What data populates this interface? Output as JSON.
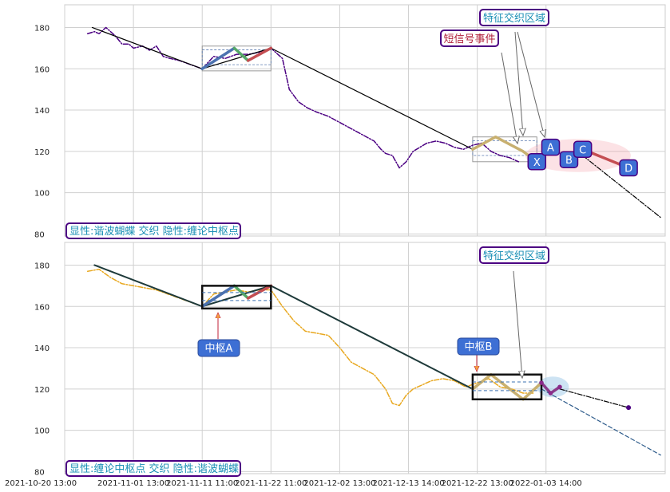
{
  "chart_data": [
    {
      "type": "line",
      "panel": "top",
      "ylim": [
        79,
        191
      ],
      "yticks": [
        80,
        100,
        120,
        140,
        160,
        180
      ],
      "grid": true,
      "series": [
        {
          "role": "price",
          "color": "#4b0082",
          "style": "dash-dot",
          "values": [
            [
              0,
              177
            ],
            [
              3,
              178
            ],
            [
              5,
              177
            ],
            [
              8,
              180
            ],
            [
              12,
              176
            ],
            [
              15,
              172
            ],
            [
              18,
              172
            ],
            [
              20,
              170
            ],
            [
              24,
              171
            ],
            [
              27,
              169
            ],
            [
              30,
              171
            ],
            [
              33,
              166
            ],
            [
              36,
              165
            ],
            [
              40,
              164
            ],
            [
              45,
              162
            ],
            [
              50,
              160
            ],
            [
              55,
              166
            ],
            [
              60,
              165
            ],
            [
              65,
              167
            ],
            [
              70,
              167
            ],
            [
              75,
              168
            ],
            [
              80,
              170
            ],
            [
              85,
              165
            ],
            [
              88,
              150
            ],
            [
              92,
              144
            ],
            [
              96,
              141
            ],
            [
              100,
              139
            ],
            [
              105,
              137
            ],
            [
              110,
              134
            ],
            [
              115,
              131
            ],
            [
              120,
              128
            ],
            [
              125,
              125
            ],
            [
              128,
              121
            ],
            [
              130,
              119
            ],
            [
              133,
              118
            ],
            [
              136,
              112
            ],
            [
              139,
              115
            ],
            [
              142,
              120
            ],
            [
              145,
              122
            ],
            [
              148,
              124
            ],
            [
              152,
              125
            ],
            [
              156,
              124
            ],
            [
              160,
              122
            ],
            [
              164,
              121
            ],
            [
              168,
              123
            ],
            [
              172,
              124
            ],
            [
              176,
              120
            ],
            [
              180,
              118
            ],
            [
              184,
              117
            ],
            [
              188,
              115
            ]
          ]
        },
        {
          "role": "trend-line",
          "color": "#000000",
          "style": "solid",
          "values": [
            [
              2,
              180
            ],
            [
              50,
              160
            ],
            [
              80,
              170
            ],
            [
              168,
              121
            ]
          ]
        },
        {
          "role": "harmonic-leg-1",
          "color": "#4c72b0",
          "values": [
            [
              50,
              160
            ],
            [
              64,
              170
            ]
          ]
        },
        {
          "role": "harmonic-leg-2",
          "color": "#55a868",
          "values": [
            [
              64,
              170
            ],
            [
              70,
              164
            ]
          ]
        },
        {
          "role": "harmonic-leg-3",
          "color": "#c44e52",
          "values": [
            [
              70,
              164
            ],
            [
              80,
              170
            ]
          ]
        },
        {
          "role": "second-zigzag",
          "color": "#c8b070",
          "values": [
            [
              168,
              121
            ],
            [
              178,
              127
            ],
            [
              190,
              120
            ],
            [
              196,
              115
            ]
          ]
        },
        {
          "role": "butterfly-XA",
          "color": "#000000",
          "values": [
            [
              196,
              115
            ],
            [
              202,
              122
            ]
          ]
        },
        {
          "role": "butterfly-AB",
          "color": "#3a6fd8",
          "style": "dashed",
          "values": [
            [
              202,
              122
            ],
            [
              210,
              116
            ]
          ]
        },
        {
          "role": "butterfly-BC",
          "color": "#3a6fd8",
          "style": "dashed",
          "values": [
            [
              210,
              116
            ],
            [
              216,
              121
            ]
          ]
        },
        {
          "role": "butterfly-CD",
          "color": "#c44e52",
          "values": [
            [
              216,
              121
            ],
            [
              236,
              112
            ]
          ]
        },
        {
          "role": "projection",
          "color": "#000000",
          "style": "dash-dot",
          "values": [
            [
              216,
              118
            ],
            [
              250,
              88
            ]
          ]
        }
      ],
      "pattern_points": [
        {
          "label": "X",
          "x": 196,
          "y": 115
        },
        {
          "label": "A",
          "x": 202,
          "y": 122
        },
        {
          "label": "B",
          "x": 210,
          "y": 116
        },
        {
          "label": "C",
          "x": 216,
          "y": 121
        },
        {
          "label": "D",
          "x": 236,
          "y": 112
        }
      ],
      "zones": [
        {
          "x0": 50,
          "x1": 80,
          "y0": 159,
          "y1": 171
        },
        {
          "x0": 168,
          "x1": 196,
          "y0": 115,
          "y1": 127
        }
      ],
      "highlight": {
        "cx": 214,
        "cy": 118,
        "rx": 23,
        "ry": 8
      },
      "annotations": [
        {
          "text": "特征交织区域",
          "color": "#1a8fb5"
        },
        {
          "text": "短信号事件",
          "color": "#b0203a"
        }
      ],
      "caption": "显性:谐波蝴蝶 交织 隐性:缠论中枢点"
    },
    {
      "type": "line",
      "panel": "bottom",
      "ylim": [
        79,
        191
      ],
      "yticks": [
        80,
        100,
        120,
        140,
        160,
        180
      ],
      "grid": true,
      "series": [
        {
          "role": "price",
          "color": "#e8a820",
          "style": "dash-dot",
          "values": [
            [
              0,
              177
            ],
            [
              5,
              178
            ],
            [
              10,
              174
            ],
            [
              15,
              171
            ],
            [
              20,
              170
            ],
            [
              25,
              169
            ],
            [
              30,
              168
            ],
            [
              35,
              166
            ],
            [
              40,
              164
            ],
            [
              45,
              162
            ],
            [
              50,
              160
            ],
            [
              55,
              166
            ],
            [
              60,
              167
            ],
            [
              65,
              168
            ],
            [
              70,
              167
            ],
            [
              75,
              168
            ],
            [
              80,
              168
            ],
            [
              85,
              160
            ],
            [
              90,
              153
            ],
            [
              95,
              148
            ],
            [
              100,
              147
            ],
            [
              105,
              146
            ],
            [
              110,
              140
            ],
            [
              115,
              133
            ],
            [
              120,
              130
            ],
            [
              125,
              127
            ],
            [
              130,
              120
            ],
            [
              133,
              113
            ],
            [
              136,
              112
            ],
            [
              139,
              117
            ],
            [
              142,
              120
            ],
            [
              146,
              122
            ],
            [
              150,
              124
            ],
            [
              155,
              125
            ],
            [
              160,
              124
            ],
            [
              165,
              121
            ],
            [
              170,
              123
            ],
            [
              175,
              125
            ],
            [
              180,
              121
            ],
            [
              185,
              120
            ],
            [
              190,
              118
            ],
            [
              195,
              118
            ]
          ]
        },
        {
          "role": "trend-line",
          "color": "#1e3a3a",
          "style": "solid",
          "values": [
            [
              3,
              180
            ],
            [
              50,
              160
            ],
            [
              80,
              170
            ],
            [
              168,
              120
            ]
          ]
        },
        {
          "role": "zhongshu-leg-1",
          "color": "#4c72b0",
          "values": [
            [
              50,
              160
            ],
            [
              64,
              170
            ]
          ]
        },
        {
          "role": "zhongshu-leg-2",
          "color": "#55a868",
          "values": [
            [
              64,
              170
            ],
            [
              70,
              164
            ]
          ]
        },
        {
          "role": "zhongshu-leg-3",
          "color": "#c44e52",
          "values": [
            [
              70,
              164
            ],
            [
              80,
              170
            ]
          ]
        },
        {
          "role": "zhongshu-B-legs",
          "color": "#c8b070",
          "values": [
            [
              168,
              120
            ],
            [
              176,
              127
            ],
            [
              190,
              115
            ],
            [
              198,
              123
            ]
          ]
        },
        {
          "role": "tail",
          "color": "#8a3a8a",
          "values": [
            [
              198,
              123
            ],
            [
              202,
              118
            ],
            [
              206,
              121
            ]
          ]
        },
        {
          "role": "projection",
          "color": "#000000",
          "style": "dash-dot",
          "values": [
            [
              206,
              120
            ],
            [
              236,
              111
            ]
          ]
        },
        {
          "role": "projection-2",
          "color": "#2c5a8a",
          "style": "dashed",
          "values": [
            [
              198,
              120
            ],
            [
              250,
              88
            ]
          ]
        }
      ],
      "zones": [
        {
          "label": "中枢A",
          "x0": 50,
          "x1": 80,
          "y0": 159,
          "y1": 170
        },
        {
          "label": "中枢B",
          "x0": 168,
          "x1": 198,
          "y0": 115,
          "y1": 127
        }
      ],
      "highlight": {
        "cx": 203,
        "cy": 121,
        "rx": 7,
        "ry": 5
      },
      "annotations": [
        {
          "text": "特征交织区域",
          "color": "#1a8fb5"
        },
        {
          "text": "中枢A",
          "color": "#ffffff"
        },
        {
          "text": "中枢B",
          "color": "#ffffff"
        }
      ],
      "caption": "显性:缠论中枢点 交织 隐性:谐波蝴蝶"
    }
  ],
  "x_axis": {
    "xlim": [
      -10,
      252
    ],
    "ticks": [
      {
        "x": -10,
        "label": "2021-10-20 13:00"
      },
      {
        "x": 20,
        "label": "2021-11-01 13:00"
      },
      {
        "x": 50,
        "label": "2021-11-11 11:00"
      },
      {
        "x": 80,
        "label": "2021-11-22 11:00"
      },
      {
        "x": 110,
        "label": "2021-12-02 13:00"
      },
      {
        "x": 140,
        "label": "2021-12-13 14:00"
      },
      {
        "x": 170,
        "label": "2021-12-22 13:00"
      },
      {
        "x": 200,
        "label": "2022-01-03 14:00"
      }
    ]
  }
}
